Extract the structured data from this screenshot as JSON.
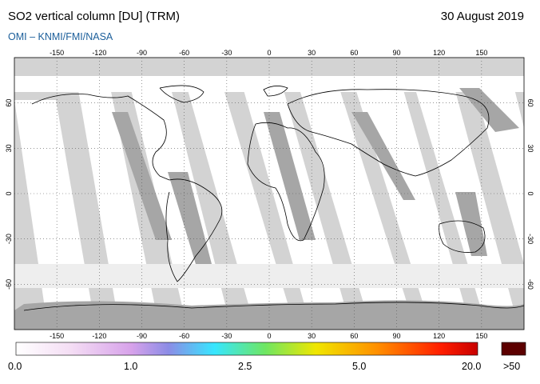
{
  "header": {
    "title": "SO2 vertical column [DU] (TRM)",
    "date": "30 August 2019",
    "credit": "OMI  –  KNMI/FMI/NASA"
  },
  "map": {
    "projection": "equirectangular",
    "lon_range": [
      -180,
      180
    ],
    "lat_range": [
      -90,
      90
    ],
    "lon_ticks": [
      "-150",
      "-120",
      "-90",
      "-60",
      "-30",
      "0",
      "30",
      "60",
      "90",
      "120",
      "150"
    ],
    "lat_ticks": [
      "60",
      "30",
      "0",
      "-30",
      "-60"
    ],
    "gridlines": "dotted",
    "colors": {
      "background": "#d3d3d3",
      "orbit_swath": "#ffffff",
      "land_shadow": "#a6a6a6",
      "coastline": "#000000"
    }
  },
  "colorbar": {
    "labels": [
      "0.0",
      "1.0",
      "2.5",
      "5.0",
      "20.0"
    ],
    "over_label": ">50",
    "over_color": "#5c0000",
    "colors": [
      "#ffffff",
      "#f4ddf4",
      "#d7a2ea",
      "#8c8ce6",
      "#37e6ff",
      "#6ee662",
      "#f0e600",
      "#ff9100",
      "#ff1e00",
      "#c80000"
    ]
  }
}
